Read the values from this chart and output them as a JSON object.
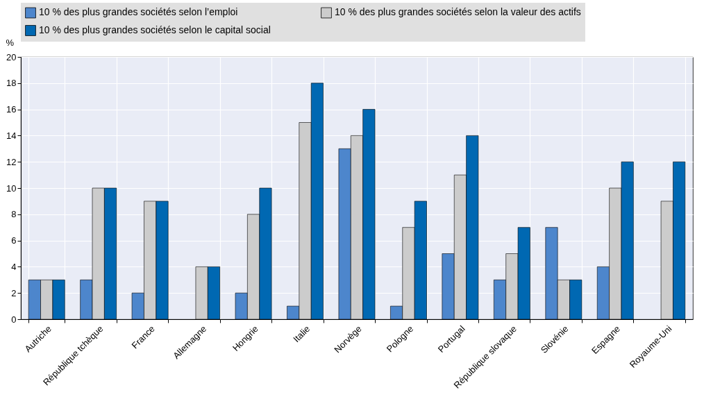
{
  "chart_data": {
    "type": "bar",
    "ylabel": "%",
    "categories": [
      "Autriche",
      "République tchèque",
      "France",
      "Allemagne",
      "Hongrie",
      "Italie",
      "Norvège",
      "Pologne",
      "Portugal",
      "République slovaque",
      "Slovénie",
      "Espagne",
      "Royaume-Uni"
    ],
    "series": [
      {
        "name": "10 % des plus grandes sociétés selon l’emploi",
        "color": "#4d86cc",
        "values": [
          3,
          3,
          2,
          null,
          2,
          1,
          13,
          1,
          5,
          3,
          7,
          4,
          null
        ]
      },
      {
        "name": "10 % des plus grandes sociétés selon la valeur des actifs",
        "color": "#cccccc",
        "values": [
          3,
          10,
          9,
          4,
          8,
          15,
          14,
          7,
          11,
          5,
          3,
          10,
          9
        ]
      },
      {
        "name": "10 % des plus grandes sociétés selon le capital social",
        "color": "#0068b2",
        "values": [
          3,
          10,
          9,
          4,
          10,
          18,
          16,
          9,
          14,
          7,
          3,
          12,
          12
        ]
      }
    ],
    "ylim": [
      0,
      20
    ],
    "yticks": [
      0,
      2,
      4,
      6,
      8,
      10,
      12,
      14,
      16,
      18,
      20
    ],
    "grid": true,
    "legend": "top"
  }
}
